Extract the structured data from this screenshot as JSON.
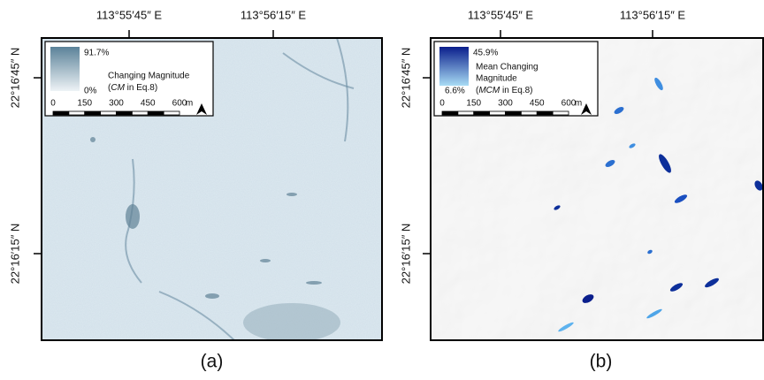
{
  "panels": [
    {
      "caption": "(a)",
      "x_ticks": [
        "113°55′45″ E",
        "113°56′15″ E"
      ],
      "y_ticks": [
        "22°16′45″ N",
        "22°16′15″ N"
      ],
      "legend": {
        "max": "91.7%",
        "min": "0%",
        "title_lines": [
          "Changing Magnitude"
        ],
        "note": [
          "(",
          "CM",
          " in Eq.8)"
        ]
      },
      "scale": [
        "0",
        "150",
        "300",
        "450",
        "600",
        "m"
      ]
    },
    {
      "caption": "(b)",
      "x_ticks": [
        "113°55′45″ E",
        "113°56′15″ E"
      ],
      "y_ticks": [
        "22°16′45″ N",
        "22°16′15″ N"
      ],
      "legend": {
        "max": "45.9%",
        "min": "6.6%",
        "title_lines": [
          "Mean Changing",
          "Magnitude"
        ],
        "note": [
          "(",
          "MCM",
          " in Eq.8)"
        ]
      },
      "scale": [
        "0",
        "150",
        "300",
        "450",
        "600",
        "m"
      ]
    }
  ]
}
